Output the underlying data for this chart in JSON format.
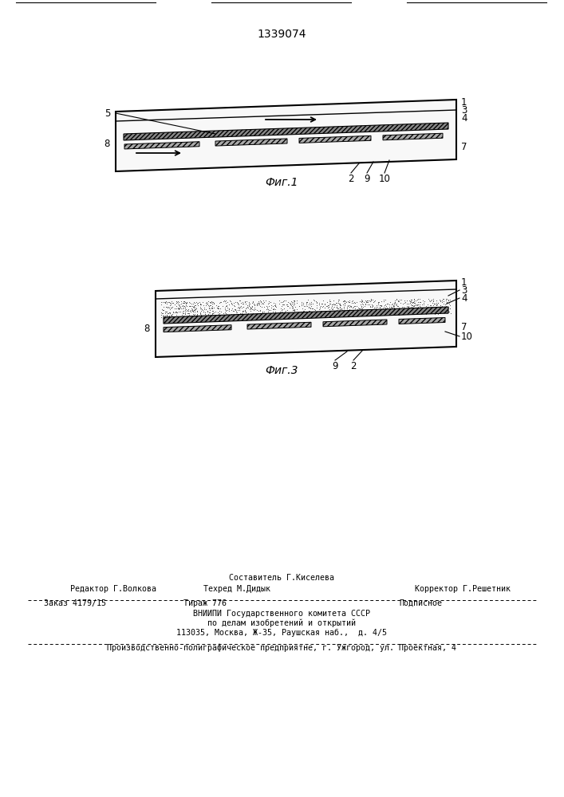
{
  "patent_number": "1339074",
  "fig1_caption": "Фиг.1",
  "fig3_caption": "Фиг.3",
  "bg_color": "#ffffff",
  "line_color": "#000000",
  "compose_line1": "Составитель Г.Киселева",
  "editor_line": "Редактор Г.Волкова",
  "techred_line": "Техред М.Дидык",
  "corrector_line": "Корректор Г.Решетник",
  "order_text": "Заказ 4179/15",
  "tirazh_text": "Тираж 776",
  "podpisnoe_text": "Подписное",
  "vniiipi_line1": "ВНИИПИ Государственного комитета СССР",
  "vniiipi_line2": "по делам изобретений и открытий",
  "vniiipi_line3": "113035, Москва, Ж-35, Раушская наб.,  д. 4/5",
  "footer_line": "Производственно-полиграфическое предприятне, г. Ужгород, ул. Проектная, 4"
}
